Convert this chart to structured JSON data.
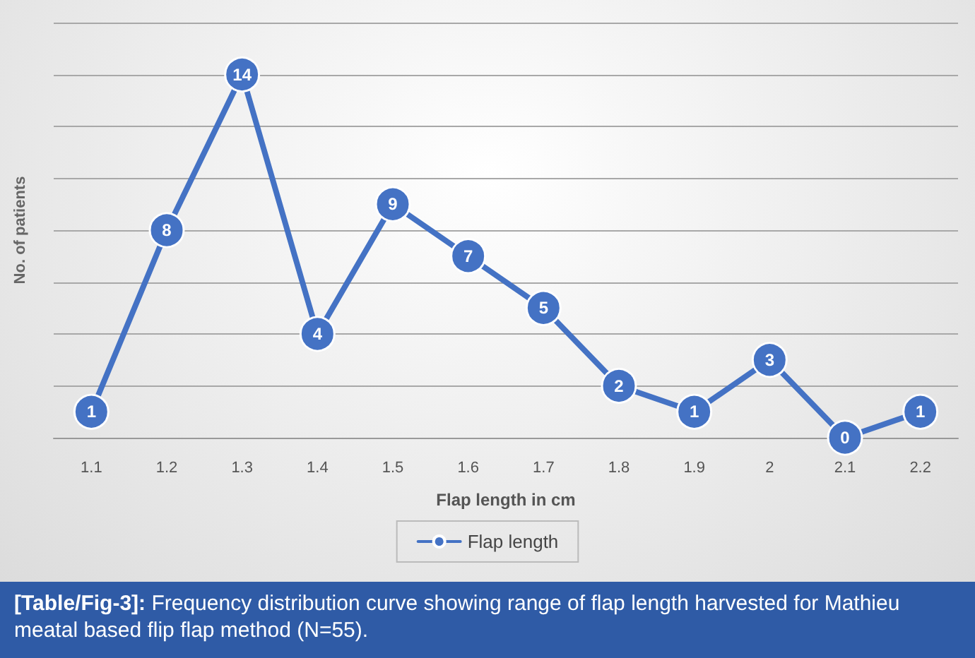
{
  "chart_data": {
    "type": "line",
    "xlabel": "Flap length in cm",
    "ylabel": "No. of patients",
    "categories": [
      "1.1",
      "1.2",
      "1.3",
      "1.4",
      "1.5",
      "1.6",
      "1.7",
      "1.8",
      "1.9",
      "2",
      "2.1",
      "2.2"
    ],
    "series": [
      {
        "name": "Flap length",
        "color": "#4472c4",
        "values": [
          1,
          8,
          14,
          4,
          9,
          7,
          5,
          2,
          1,
          3,
          0,
          1
        ]
      }
    ],
    "ylim": [
      0,
      16
    ],
    "yticks": [
      {
        "value": 0,
        "label": null
      },
      {
        "value": 2,
        "label": null
      },
      {
        "value": 4,
        "label": null
      },
      {
        "value": 6,
        "label": null
      },
      {
        "value": 8,
        "label": null
      },
      {
        "value": 10,
        "label": null
      },
      {
        "value": 12,
        "label": null
      },
      {
        "value": 14,
        "label": null
      },
      {
        "value": 16,
        "label": null
      }
    ],
    "grid": "y",
    "legend": "bottom",
    "marker": "circle",
    "line_style": "solid",
    "data_labels": true,
    "annotations": [
      "[Table/Fig-3]: Frequency distribution curve showing range of flap length harvested for Mathieu meatal based flip flap method (N=55)."
    ]
  }
}
